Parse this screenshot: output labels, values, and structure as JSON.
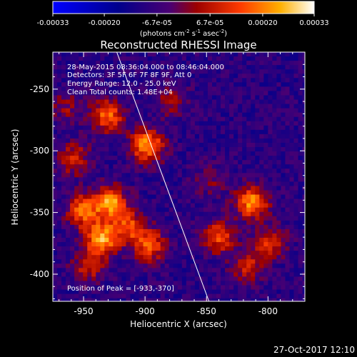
{
  "colorbar": {
    "ticks": [
      "-0.00033",
      "-0.00020",
      "-6.7e-05",
      "6.7e-05",
      "0.00020",
      "0.00033"
    ],
    "tick_values": [
      -0.00033,
      -0.0002,
      -6.7e-05,
      6.7e-05,
      0.0002,
      0.00033
    ],
    "units_main": "(photons cm",
    "units_exp1": "-2",
    "units_mid": " s",
    "units_exp2": "-1",
    "units_mid2": " asec",
    "units_exp3": "-2",
    "units_end": ")",
    "range": [
      -0.00033,
      0.00033
    ]
  },
  "chart_data": {
    "type": "heatmap",
    "title": "Reconstructed RHESSI Image",
    "xlabel": "Heliocentric X (arcsec)",
    "ylabel": "Heliocentric Y (arcsec)",
    "xlim": [
      -975,
      -770
    ],
    "ylim": [
      -422,
      -220
    ],
    "xticks": [
      "-950",
      "-900",
      "-850",
      "-800"
    ],
    "xtick_values": [
      -950,
      -900,
      -850,
      -800
    ],
    "yticks": [
      "-250",
      "-300",
      "-350",
      "-400"
    ],
    "ytick_values": [
      -250,
      -300,
      -350,
      -400
    ],
    "limb_line": {
      "x": [
        -923,
        -848
      ],
      "y": [
        -220,
        -422
      ]
    },
    "sources": [
      {
        "x": -932,
        "y": -270,
        "value": 0.00026
      },
      {
        "x": -900,
        "y": -294,
        "value": 0.00032
      },
      {
        "x": -960,
        "y": -305,
        "value": 0.00018
      },
      {
        "x": -930,
        "y": -340,
        "value": 0.00031
      },
      {
        "x": -952,
        "y": -347,
        "value": 0.00026
      },
      {
        "x": -937,
        "y": -370,
        "value": 0.00033
      },
      {
        "x": -915,
        "y": -360,
        "value": 0.00022
      },
      {
        "x": -898,
        "y": -375,
        "value": 0.00024
      },
      {
        "x": -948,
        "y": -392,
        "value": 0.00016
      },
      {
        "x": -815,
        "y": -340,
        "value": 0.0003
      },
      {
        "x": -842,
        "y": -368,
        "value": 0.00022
      },
      {
        "x": -800,
        "y": -372,
        "value": 0.00019
      },
      {
        "x": -818,
        "y": -393,
        "value": 0.00017
      },
      {
        "x": -880,
        "y": -257,
        "value": 0.00012
      },
      {
        "x": -965,
        "y": -262,
        "value": 0.00011
      },
      {
        "x": -848,
        "y": -322,
        "value": 9e-05
      }
    ],
    "annotations": {
      "time": "28-May-2015 08:36:04.000 to 08:46:04.000",
      "detectors": "Detectors: 3F 5F 6F 7F 8F 9F, Att 0",
      "energy": "Energy Range: 12.0 - 25.0 keV",
      "clean": "Clean     Total counts: 1.48E+04",
      "peak": "Position of Peak = [-933,-370]"
    }
  },
  "timestamp": "27-Oct-2017 12:10"
}
